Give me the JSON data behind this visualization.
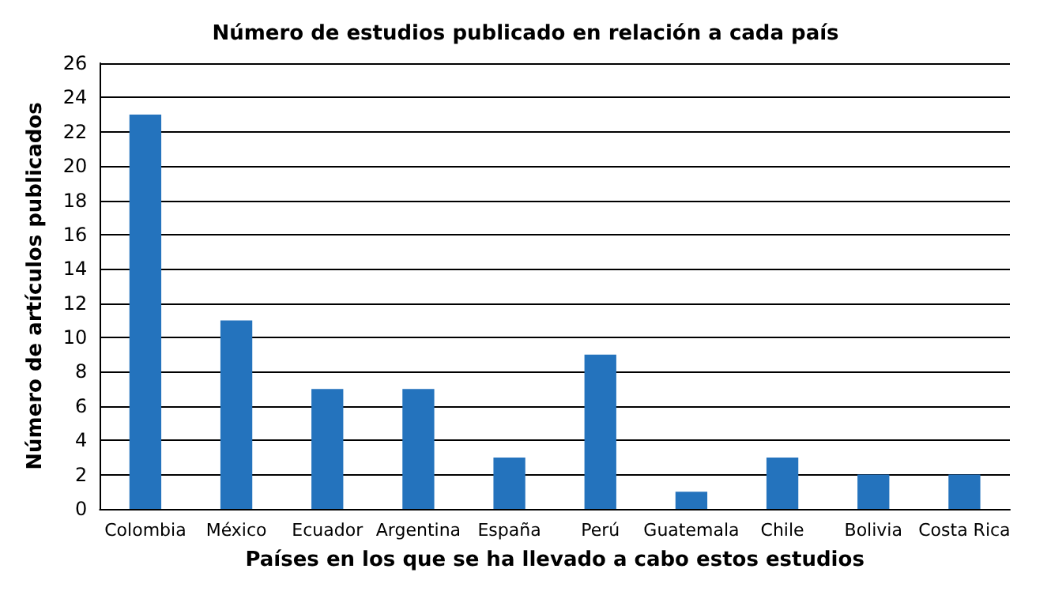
{
  "chart_data": {
    "type": "bar",
    "title": "Número de estudios publicado en relación a cada país",
    "xlabel": "Países en los que se ha llevado a cabo estos estudios",
    "ylabel": "Número de artículos publicados",
    "categories": [
      "Colombia",
      "México",
      "Ecuador",
      "Argentina",
      "España",
      "Perú",
      "Guatemala",
      "Chile",
      "Bolivia",
      "Costa Rica"
    ],
    "values": [
      23,
      11,
      7,
      7,
      3,
      9,
      1,
      3,
      2,
      2
    ],
    "color": "#2473bd",
    "ylim": [
      0,
      26
    ],
    "yticks": [
      0,
      2,
      4,
      6,
      8,
      10,
      12,
      14,
      16,
      18,
      20,
      22,
      24,
      26
    ],
    "grid": "y"
  }
}
